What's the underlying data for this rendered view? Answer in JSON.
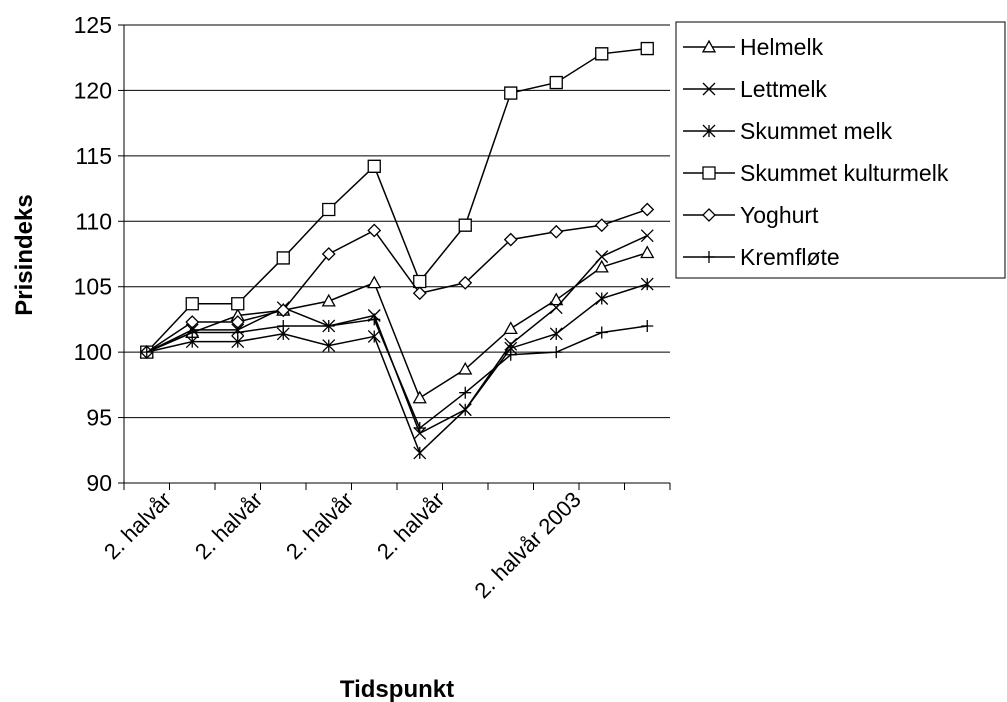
{
  "chart_data": {
    "type": "line",
    "x_label": "Tidspunkt",
    "y_label": "Prisindeks",
    "categories": [
      "2. halvår",
      null,
      "2. halvår",
      null,
      "2. halvår",
      null,
      "2. halvår",
      null,
      null,
      "2. halvår 2003",
      null,
      null
    ],
    "ylim": [
      90,
      125
    ],
    "yticks": [
      90,
      95,
      100,
      105,
      110,
      115,
      120,
      125
    ],
    "grid": true,
    "legend": "right",
    "series": [
      {
        "name": "Helmelk",
        "color": "#000000",
        "marker": "triangle",
        "values": [
          100,
          101.5,
          102.8,
          103.2,
          103.9,
          105.3,
          96.5,
          98.7,
          101.8,
          104,
          106.5,
          107.6
        ]
      },
      {
        "name": "Lettmelk",
        "color": "#000000",
        "marker": "x",
        "values": [
          100,
          101.7,
          101.7,
          103.4,
          102,
          102.8,
          93.8,
          95.6,
          100.6,
          103.4,
          107.3,
          108.9
        ]
      },
      {
        "name": "Skummet melk",
        "color": "#000000",
        "marker": "star",
        "values": [
          100,
          100.8,
          100.8,
          101.4,
          100.5,
          101.2,
          92.3,
          95.6,
          100.3,
          101.4,
          104.1,
          105.2
        ]
      },
      {
        "name": "Skummet kulturmelk",
        "color": "#000000",
        "marker": "square",
        "values": [
          100,
          103.7,
          103.7,
          107.2,
          110.9,
          114.2,
          105.4,
          109.7,
          119.8,
          120.6,
          122.8,
          123.2
        ]
      },
      {
        "name": "Yoghurt",
        "color": "#000000",
        "marker": "diamond",
        "values": [
          100,
          102.3,
          102.3,
          103.2,
          107.5,
          109.3,
          104.5,
          105.3,
          108.6,
          109.2,
          109.7,
          110.9
        ]
      },
      {
        "name": "Kremfløte",
        "color": "#000000",
        "marker": "plus",
        "values": [
          100,
          101.5,
          101.5,
          102,
          102,
          102.5,
          94.2,
          96.9,
          99.8,
          100,
          101.5,
          102
        ]
      }
    ]
  }
}
